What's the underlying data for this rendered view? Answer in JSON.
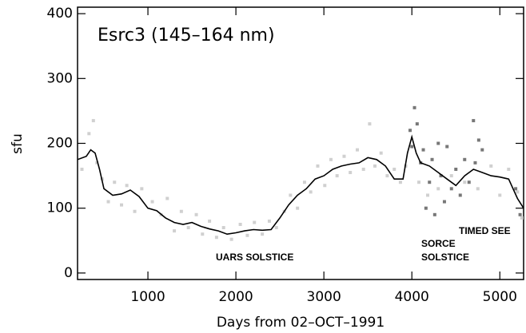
{
  "chart_data": {
    "type": "line",
    "title": "Esrc3 (145–164 nm)",
    "x_label": "Days from 02–OCT–1991",
    "y_label": "sfu",
    "annotations": [
      "UARS SOLSTICE",
      "SORCE",
      "SOLSTICE",
      "TIMED SEE"
    ],
    "xlim": [
      200,
      5270
    ],
    "ylim": [
      -10,
      410
    ],
    "xticks": [
      1000,
      2000,
      3000,
      4000,
      5000
    ],
    "yticks": [
      0,
      100,
      200,
      300,
      400
    ],
    "grid": false,
    "series": [
      {
        "name": "UARS SOLSTICE",
        "kind": "points",
        "color": "#d0d0d0",
        "x": [
          250,
          330,
          380,
          420,
          480,
          550,
          620,
          700,
          760,
          850,
          930,
          1050,
          1150,
          1220,
          1300,
          1380,
          1460,
          1550,
          1620,
          1700,
          1780,
          1860,
          1950,
          2050,
          2130,
          2210,
          2300,
          2380,
          2460,
          2550,
          2620,
          2700,
          2780,
          2850,
          2930,
          3010,
          3080,
          3150,
          3230,
          3300,
          3380,
          3450,
          3520,
          3580,
          3650,
          3720,
          3800,
          3870,
          3930,
          4080,
          4180,
          4300,
          4450,
          4600,
          4750,
          4900,
          5000,
          5100,
          5200,
          5250
        ],
        "values": [
          160,
          215,
          235,
          170,
          145,
          110,
          140,
          105,
          135,
          95,
          130,
          110,
          90,
          115,
          65,
          95,
          70,
          90,
          60,
          80,
          55,
          70,
          52,
          75,
          58,
          78,
          60,
          80,
          70,
          95,
          120,
          100,
          140,
          125,
          165,
          135,
          175,
          150,
          180,
          155,
          190,
          160,
          230,
          165,
          185,
          150,
          160,
          140,
          165,
          140,
          120,
          130,
          150,
          140,
          130,
          165,
          120,
          160,
          125,
          85
        ]
      },
      {
        "name": "SORCE SOLSTICE",
        "kind": "points",
        "color": "#777777",
        "x": [
          3980,
          4000,
          4030,
          4060,
          4100,
          4130,
          4160,
          4200,
          4230,
          4260,
          4300,
          4330,
          4370,
          4400,
          4450,
          4500,
          4550,
          4600,
          4650,
          4700,
          4720,
          4760,
          4800,
          5180,
          5230
        ],
        "values": [
          220,
          195,
          255,
          230,
          170,
          190,
          100,
          140,
          175,
          90,
          200,
          150,
          110,
          195,
          130,
          160,
          120,
          175,
          140,
          235,
          170,
          205,
          190,
          130,
          90
        ]
      },
      {
        "name": "Esrc3",
        "kind": "line",
        "color": "#000000",
        "x": [
          200,
          300,
          350,
          400,
          450,
          500,
          600,
          700,
          800,
          900,
          1000,
          1100,
          1200,
          1300,
          1400,
          1500,
          1600,
          1700,
          1800,
          1900,
          2000,
          2100,
          2200,
          2300,
          2400,
          2500,
          2600,
          2700,
          2800,
          2900,
          3000,
          3100,
          3200,
          3300,
          3400,
          3500,
          3600,
          3700,
          3800,
          3900,
          3950,
          4000,
          4050,
          4100,
          4200,
          4300,
          4400,
          4500,
          4600,
          4700,
          4800,
          4900,
          5000,
          5100,
          5200,
          5270
        ],
        "values": [
          175,
          180,
          190,
          185,
          160,
          130,
          120,
          122,
          128,
          118,
          100,
          96,
          85,
          78,
          75,
          78,
          72,
          68,
          65,
          60,
          62,
          65,
          67,
          66,
          67,
          85,
          105,
          120,
          130,
          145,
          150,
          160,
          165,
          168,
          170,
          178,
          175,
          165,
          145,
          145,
          185,
          210,
          185,
          170,
          165,
          155,
          145,
          135,
          150,
          160,
          155,
          150,
          148,
          145,
          115,
          100
        ]
      }
    ]
  }
}
